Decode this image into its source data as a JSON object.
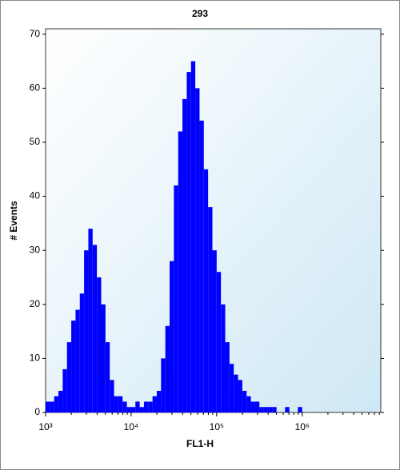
{
  "chart_data": {
    "type": "histogram",
    "title": "293",
    "xlabel": "FL1-H",
    "ylabel": "# Events",
    "xlog": true,
    "color": "#0000ff",
    "bins": [
      1000,
      1122,
      1259,
      1413,
      1585,
      1778,
      1995,
      2239,
      2512,
      2818,
      3162,
      3548,
      3981,
      4467,
      5012,
      5623,
      6310,
      7079,
      7943,
      8913,
      10000,
      11220,
      12589,
      14125,
      15849,
      17783,
      19953,
      22387,
      25119,
      28184,
      31623,
      35481,
      39811,
      44668,
      50119,
      56234,
      63096,
      70795,
      79433,
      89125,
      100000,
      112202,
      125893,
      141254,
      158489,
      177828,
      199526,
      223872,
      251189,
      281838,
      316228,
      354813,
      398107,
      446684,
      501187,
      562341,
      630957,
      707946,
      794328,
      891251,
      1000000,
      1122018,
      1258925,
      1412538,
      1584893
    ],
    "values": [
      2,
      2,
      3,
      4,
      8,
      13,
      17,
      19,
      22,
      30,
      34,
      31,
      25,
      20,
      13,
      6,
      3,
      3,
      2,
      1,
      1,
      2,
      1,
      2,
      2,
      3,
      4,
      10,
      16,
      28,
      42,
      52,
      58,
      63,
      65,
      60,
      54,
      45,
      38,
      30,
      26,
      20,
      13,
      9,
      7,
      6,
      4,
      3,
      2,
      2,
      1,
      1,
      1,
      1,
      0,
      0,
      1,
      0,
      0,
      1,
      0,
      0,
      0,
      0
    ],
    "xlim": [
      1000,
      8300000
    ],
    "xticks": [
      {
        "value": 1000,
        "label": "10³"
      },
      {
        "value": 10000,
        "label": "10⁴"
      },
      {
        "value": 100000,
        "label": "10⁵"
      },
      {
        "value": 1000000,
        "label": "10⁶"
      }
    ],
    "ylim": [
      0,
      71
    ],
    "yticks": [
      0,
      10,
      20,
      30,
      40,
      50,
      60,
      70
    ]
  }
}
